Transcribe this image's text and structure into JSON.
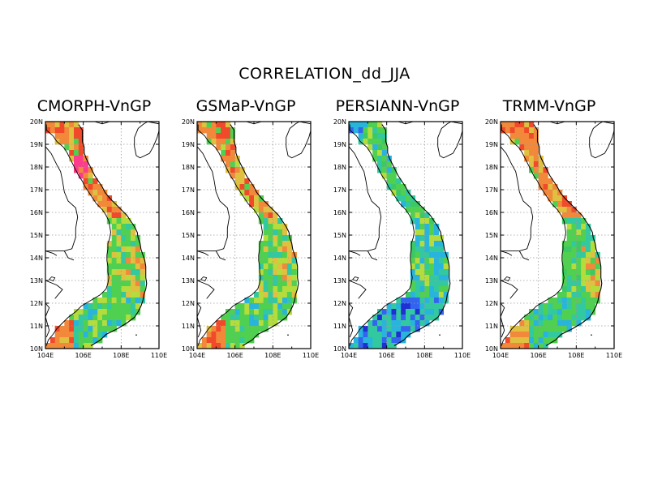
{
  "title": "CORRELATION_dd_JJA",
  "panels": [
    {
      "title": "CMORPH-VnGP",
      "scheme": "cmorph"
    },
    {
      "title": "GSMaP-VnGP",
      "scheme": "gsmap"
    },
    {
      "title": "PERSIANN-VnGP",
      "scheme": "persiann"
    },
    {
      "title": "TRMM-VnGP",
      "scheme": "trmm"
    }
  ],
  "axes": {
    "lat_labels": [
      "10N",
      "11N",
      "12N",
      "13N",
      "14N",
      "15N",
      "16N",
      "17N",
      "18N",
      "19N",
      "20N"
    ],
    "lon_labels": [
      "104E",
      "106E",
      "108E",
      "110E"
    ],
    "lat_range": [
      10,
      20
    ],
    "lon_range": [
      104,
      110
    ]
  },
  "colors": {
    "magenta": "#ff3c8c",
    "red": "#f04a2a",
    "orange": "#f2883a",
    "yellow_orange": "#e0c040",
    "yellow_green": "#b4dc3c",
    "green": "#50d050",
    "green_dark": "#3cc864",
    "teal": "#32c8a0",
    "cyan": "#28b4dc",
    "blue": "#3264f0",
    "deep_blue": "#2030d0"
  }
}
